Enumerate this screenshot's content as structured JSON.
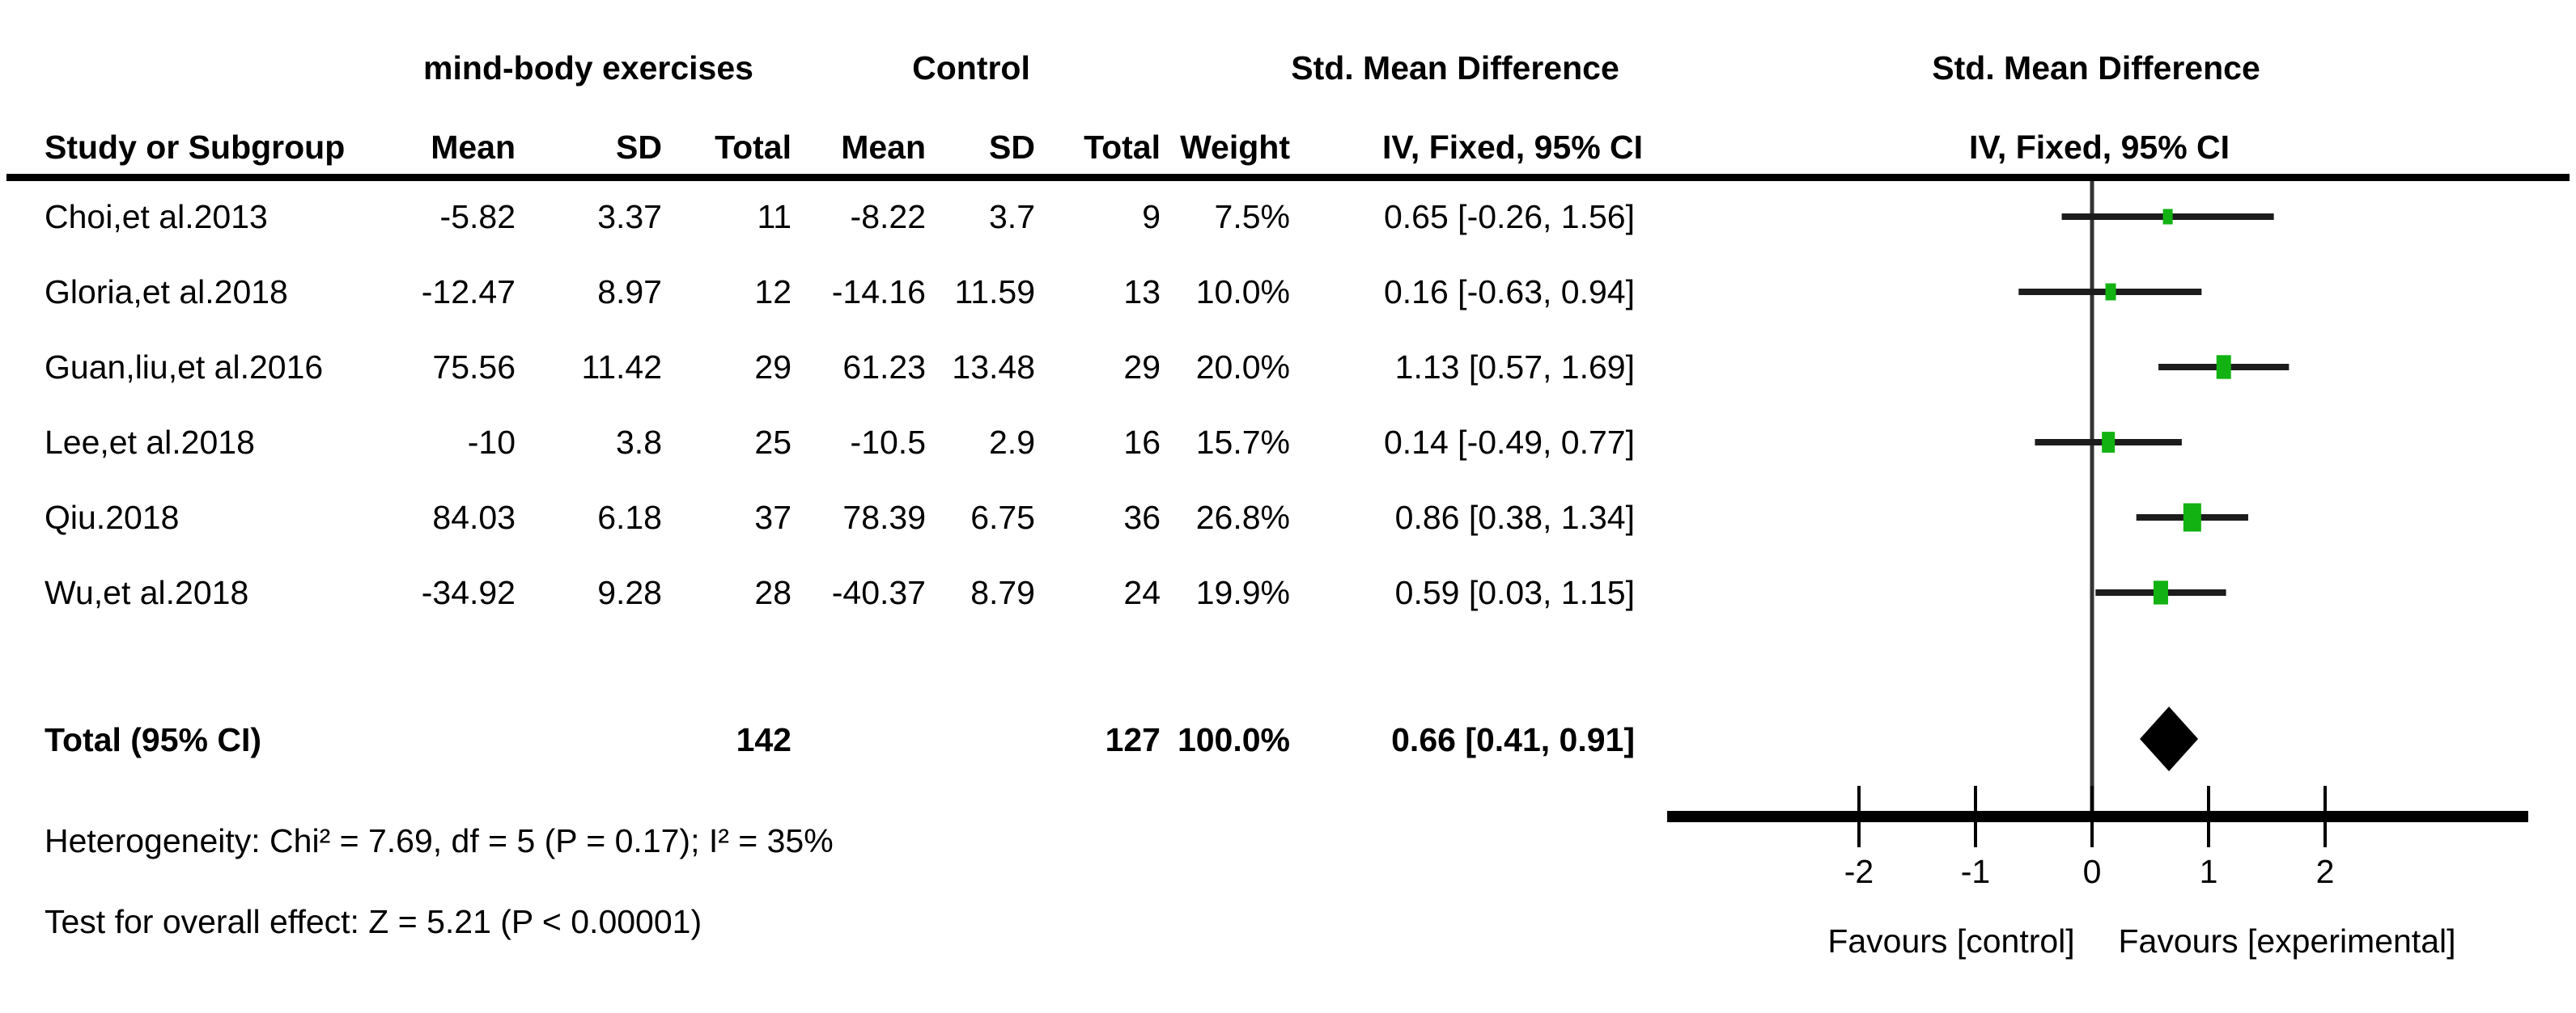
{
  "meta": {
    "marker_color": "#12b212",
    "whisker_color": "#1c1c1c",
    "diamond_color": "#000000",
    "axis_color": "#000000",
    "zero_line_color": "#333333"
  },
  "table": {
    "group1_header": "mind-body exercises",
    "group2_header": "Control",
    "effect_header": "Std. Mean Difference",
    "plot_header": "Std. Mean Difference",
    "effect_subheader": "IV, Fixed, 95% CI",
    "plot_subheader": "IV, Fixed, 95% CI",
    "columns": [
      "Study or Subgroup",
      "Mean",
      "SD",
      "Total",
      "Mean",
      "SD",
      "Total",
      "Weight"
    ],
    "rows": [
      {
        "study": "Choi,et al.2013",
        "mean1": "-5.82",
        "sd1": "3.37",
        "total1": "11",
        "mean2": "-8.22",
        "sd2": "3.7",
        "total2": "9",
        "weight": "7.5%",
        "ci_text": "0.65 [-0.26, 1.56]",
        "est": 0.65,
        "lo": -0.26,
        "hi": 1.56,
        "weight_val": 7.5
      },
      {
        "study": "Gloria,et al.2018",
        "mean1": "-12.47",
        "sd1": "8.97",
        "total1": "12",
        "mean2": "-14.16",
        "sd2": "11.59",
        "total2": "13",
        "weight": "10.0%",
        "ci_text": "0.16 [-0.63, 0.94]",
        "est": 0.16,
        "lo": -0.63,
        "hi": 0.94,
        "weight_val": 10.0
      },
      {
        "study": "Guan,liu,et al.2016",
        "mean1": "75.56",
        "sd1": "11.42",
        "total1": "29",
        "mean2": "61.23",
        "sd2": "13.48",
        "total2": "29",
        "weight": "20.0%",
        "ci_text": "1.13 [0.57, 1.69]",
        "est": 1.13,
        "lo": 0.57,
        "hi": 1.69,
        "weight_val": 20.0
      },
      {
        "study": "Lee,et al.2018",
        "mean1": "-10",
        "sd1": "3.8",
        "total1": "25",
        "mean2": "-10.5",
        "sd2": "2.9",
        "total2": "16",
        "weight": "15.7%",
        "ci_text": "0.14 [-0.49, 0.77]",
        "est": 0.14,
        "lo": -0.49,
        "hi": 0.77,
        "weight_val": 15.7
      },
      {
        "study": "Qiu.2018",
        "mean1": "84.03",
        "sd1": "6.18",
        "total1": "37",
        "mean2": "78.39",
        "sd2": "6.75",
        "total2": "36",
        "weight": "26.8%",
        "ci_text": "0.86 [0.38, 1.34]",
        "est": 0.86,
        "lo": 0.38,
        "hi": 1.34,
        "weight_val": 26.8
      },
      {
        "study": "Wu,et al.2018",
        "mean1": "-34.92",
        "sd1": "9.28",
        "total1": "28",
        "mean2": "-40.37",
        "sd2": "8.79",
        "total2": "24",
        "weight": "19.9%",
        "ci_text": "0.59 [0.03, 1.15]",
        "est": 0.59,
        "lo": 0.03,
        "hi": 1.15,
        "weight_val": 19.9
      }
    ],
    "total": {
      "label": "Total (95% CI)",
      "total1": "142",
      "total2": "127",
      "weight": "100.0%",
      "ci_text": "0.66 [0.41, 0.91]",
      "est": 0.66,
      "lo": 0.41,
      "hi": 0.91
    },
    "heterogeneity": "Heterogeneity: Chi² = 7.69, df = 5 (P = 0.17); I² = 35%",
    "overall_effect": "Test for overall effect: Z = 5.21 (P < 0.00001)"
  },
  "axis": {
    "ticks": [
      "-2",
      "-1",
      "0",
      "1",
      "2"
    ],
    "tick_values": [
      -2,
      -1,
      0,
      1,
      2
    ],
    "favours_left": "Favours [control]",
    "favours_right": "Favours [experimental]"
  },
  "chart_data": {
    "type": "forest",
    "title": "Std. Mean Difference  IV, Fixed, 95% CI",
    "comparison": "mind-body exercises vs Control",
    "studies": [
      "Choi,et al.2013",
      "Gloria,et al.2018",
      "Guan,liu,et al.2016",
      "Lee,et al.2018",
      "Qiu.2018",
      "Wu,et al.2018"
    ],
    "experimental": {
      "mean": [
        -5.82,
        -12.47,
        75.56,
        -10,
        84.03,
        -34.92
      ],
      "sd": [
        3.37,
        8.97,
        11.42,
        3.8,
        6.18,
        9.28
      ],
      "total": [
        11,
        12,
        29,
        25,
        37,
        28
      ]
    },
    "control": {
      "mean": [
        -8.22,
        -14.16,
        61.23,
        -10.5,
        78.39,
        -40.37
      ],
      "sd": [
        3.7,
        11.59,
        13.48,
        2.9,
        6.75,
        8.79
      ],
      "total": [
        9,
        13,
        29,
        16,
        36,
        24
      ]
    },
    "weights_pct": [
      7.5,
      10.0,
      20.0,
      15.7,
      26.8,
      19.9
    ],
    "estimates": [
      0.65,
      0.16,
      1.13,
      0.14,
      0.86,
      0.59
    ],
    "ci_low": [
      -0.26,
      -0.63,
      0.57,
      -0.49,
      0.38,
      0.03
    ],
    "ci_high": [
      1.56,
      0.94,
      1.69,
      0.77,
      1.34,
      1.15
    ],
    "total_summary": {
      "estimate": 0.66,
      "ci_low": 0.41,
      "ci_high": 0.91,
      "total_experimental": 142,
      "total_control": 127,
      "weight_pct": 100.0
    },
    "heterogeneity": {
      "chi2": 7.69,
      "df": 5,
      "p": 0.17,
      "i2_pct": 35
    },
    "overall_effect": {
      "z": 5.21,
      "p": "< 0.00001"
    },
    "xlabel_left": "Favours [control]",
    "xlabel_right": "Favours [experimental]",
    "xticks": [
      -2,
      -1,
      0,
      1,
      2
    ],
    "xlim": [
      -3.65,
      3.75
    ],
    "grid": false,
    "legend_position": "none"
  }
}
